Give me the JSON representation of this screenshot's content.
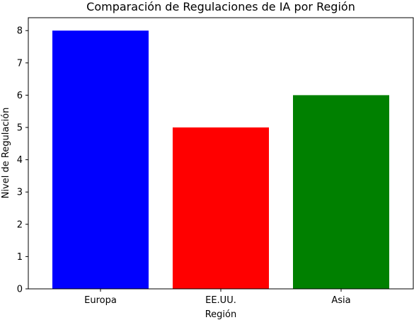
{
  "chart_data": {
    "type": "bar",
    "title": "Comparación de Regulaciones de IA por Región",
    "xlabel": "Región",
    "ylabel": "Nivel de Regulación",
    "categories": [
      "Europa",
      "EE.UU.",
      "Asia"
    ],
    "values": [
      8,
      5,
      6
    ],
    "colors": [
      "#0000ff",
      "#ff0000",
      "#008000"
    ],
    "ylim": [
      0,
      8.4
    ],
    "yticks": [
      0,
      1,
      2,
      3,
      4,
      5,
      6,
      7,
      8
    ],
    "grid": false,
    "legend": "none"
  }
}
